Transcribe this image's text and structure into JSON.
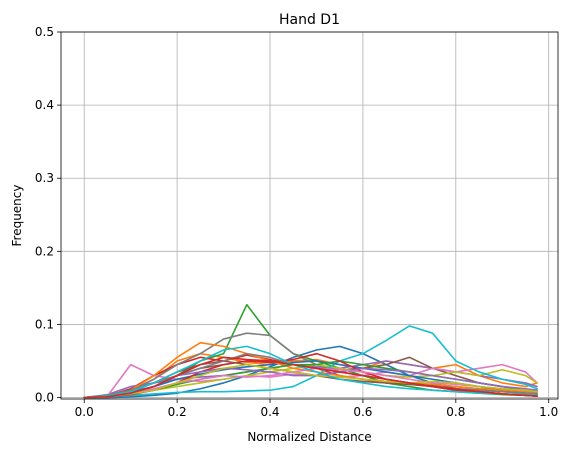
{
  "chart_data": {
    "type": "line",
    "title": "Hand D1",
    "xlabel": "Normalized Distance",
    "ylabel": "Frequency",
    "xlim": [
      -0.05,
      1.02
    ],
    "ylim": [
      -0.002,
      0.5
    ],
    "xticks": [
      0.0,
      0.2,
      0.4,
      0.6,
      0.8,
      1.0
    ],
    "xtick_labels": [
      "0.0",
      "0.2",
      "0.4",
      "0.6",
      "0.8",
      "1.0"
    ],
    "yticks": [
      0.0,
      0.1,
      0.2,
      0.3,
      0.4,
      0.5
    ],
    "ytick_labels": [
      "0.0",
      "0.1",
      "0.2",
      "0.3",
      "0.4",
      "0.5"
    ],
    "grid": true,
    "x": [
      0.0,
      0.05,
      0.1,
      0.15,
      0.2,
      0.25,
      0.3,
      0.35,
      0.4,
      0.45,
      0.5,
      0.55,
      0.6,
      0.65,
      0.7,
      0.75,
      0.8,
      0.85,
      0.9,
      0.95,
      0.975
    ],
    "series": [
      {
        "color": "#1f77b4",
        "values": [
          0.0,
          0.0,
          0.001,
          0.003,
          0.006,
          0.012,
          0.02,
          0.03,
          0.042,
          0.055,
          0.065,
          0.07,
          0.06,
          0.045,
          0.03,
          0.02,
          0.012,
          0.008,
          0.005,
          0.003,
          0.002
        ]
      },
      {
        "color": "#ff7f0e",
        "values": [
          0.0,
          0.002,
          0.01,
          0.025,
          0.05,
          0.06,
          0.055,
          0.048,
          0.045,
          0.05,
          0.052,
          0.045,
          0.04,
          0.05,
          0.045,
          0.04,
          0.045,
          0.03,
          0.02,
          0.015,
          0.02
        ]
      },
      {
        "color": "#2ca02c",
        "values": [
          0.0,
          0.001,
          0.005,
          0.015,
          0.03,
          0.05,
          0.06,
          0.127,
          0.085,
          0.06,
          0.05,
          0.04,
          0.03,
          0.02,
          0.015,
          0.01,
          0.008,
          0.006,
          0.004,
          0.003,
          0.002
        ]
      },
      {
        "color": "#d62728",
        "values": [
          0.0,
          0.002,
          0.012,
          0.03,
          0.045,
          0.055,
          0.05,
          0.058,
          0.052,
          0.045,
          0.04,
          0.03,
          0.025,
          0.02,
          0.018,
          0.015,
          0.01,
          0.008,
          0.005,
          0.003,
          0.002
        ]
      },
      {
        "color": "#9467bd",
        "values": [
          0.0,
          0.004,
          0.015,
          0.02,
          0.025,
          0.028,
          0.03,
          0.035,
          0.04,
          0.045,
          0.042,
          0.04,
          0.045,
          0.05,
          0.045,
          0.04,
          0.035,
          0.03,
          0.025,
          0.02,
          0.015
        ]
      },
      {
        "color": "#8c564b",
        "values": [
          0.0,
          0.003,
          0.01,
          0.02,
          0.03,
          0.04,
          0.045,
          0.05,
          0.048,
          0.045,
          0.04,
          0.038,
          0.04,
          0.045,
          0.055,
          0.04,
          0.03,
          0.02,
          0.015,
          0.01,
          0.008
        ]
      },
      {
        "color": "#e377c2",
        "values": [
          0.0,
          0.002,
          0.045,
          0.03,
          0.025,
          0.022,
          0.025,
          0.03,
          0.028,
          0.032,
          0.03,
          0.028,
          0.03,
          0.035,
          0.03,
          0.04,
          0.035,
          0.04,
          0.045,
          0.035,
          0.02
        ]
      },
      {
        "color": "#7f7f7f",
        "values": [
          0.0,
          0.002,
          0.01,
          0.025,
          0.045,
          0.06,
          0.08,
          0.088,
          0.085,
          0.06,
          0.045,
          0.035,
          0.03,
          0.025,
          0.02,
          0.018,
          0.015,
          0.012,
          0.01,
          0.008,
          0.006
        ]
      },
      {
        "color": "#bcbd22",
        "values": [
          0.0,
          0.002,
          0.006,
          0.01,
          0.015,
          0.02,
          0.025,
          0.03,
          0.035,
          0.04,
          0.045,
          0.04,
          0.035,
          0.03,
          0.028,
          0.03,
          0.035,
          0.03,
          0.038,
          0.03,
          0.02
        ]
      },
      {
        "color": "#17becf",
        "values": [
          0.0,
          0.001,
          0.003,
          0.005,
          0.007,
          0.008,
          0.008,
          0.009,
          0.01,
          0.015,
          0.03,
          0.05,
          0.06,
          0.078,
          0.098,
          0.088,
          0.05,
          0.035,
          0.025,
          0.018,
          0.012
        ]
      },
      {
        "color": "#1f77b4",
        "values": [
          0.0,
          0.003,
          0.008,
          0.015,
          0.025,
          0.032,
          0.038,
          0.042,
          0.045,
          0.048,
          0.05,
          0.045,
          0.04,
          0.035,
          0.03,
          0.025,
          0.02,
          0.015,
          0.01,
          0.007,
          0.005
        ]
      },
      {
        "color": "#ff7f0e",
        "values": [
          0.0,
          0.001,
          0.01,
          0.03,
          0.055,
          0.075,
          0.07,
          0.06,
          0.05,
          0.04,
          0.035,
          0.03,
          0.025,
          0.022,
          0.02,
          0.018,
          0.015,
          0.012,
          0.01,
          0.008,
          0.005
        ]
      },
      {
        "color": "#2ca02c",
        "values": [
          0.0,
          0.002,
          0.005,
          0.01,
          0.018,
          0.025,
          0.03,
          0.035,
          0.04,
          0.045,
          0.045,
          0.05,
          0.045,
          0.04,
          0.035,
          0.03,
          0.025,
          0.02,
          0.015,
          0.01,
          0.008
        ]
      },
      {
        "color": "#d62728",
        "values": [
          0.0,
          0.001,
          0.004,
          0.01,
          0.02,
          0.035,
          0.045,
          0.05,
          0.048,
          0.052,
          0.06,
          0.05,
          0.035,
          0.025,
          0.02,
          0.015,
          0.01,
          0.008,
          0.005,
          0.003,
          0.002
        ]
      },
      {
        "color": "#9467bd",
        "values": [
          0.0,
          0.002,
          0.01,
          0.02,
          0.03,
          0.035,
          0.04,
          0.038,
          0.035,
          0.03,
          0.03,
          0.035,
          0.04,
          0.038,
          0.035,
          0.03,
          0.025,
          0.02,
          0.015,
          0.012,
          0.01
        ]
      },
      {
        "color": "#8c564b",
        "values": [
          0.0,
          0.001,
          0.008,
          0.02,
          0.035,
          0.045,
          0.05,
          0.045,
          0.04,
          0.035,
          0.03,
          0.025,
          0.022,
          0.02,
          0.018,
          0.016,
          0.012,
          0.01,
          0.008,
          0.006,
          0.004
        ]
      },
      {
        "color": "#e377c2",
        "values": [
          0.0,
          0.002,
          0.006,
          0.012,
          0.02,
          0.025,
          0.03,
          0.028,
          0.03,
          0.035,
          0.04,
          0.038,
          0.035,
          0.03,
          0.025,
          0.02,
          0.018,
          0.015,
          0.012,
          0.01,
          0.008
        ]
      },
      {
        "color": "#7f7f7f",
        "values": [
          0.0,
          0.003,
          0.01,
          0.02,
          0.03,
          0.04,
          0.05,
          0.06,
          0.055,
          0.045,
          0.04,
          0.035,
          0.03,
          0.025,
          0.02,
          0.015,
          0.012,
          0.01,
          0.008,
          0.006,
          0.005
        ]
      },
      {
        "color": "#bcbd22",
        "values": [
          0.0,
          0.001,
          0.005,
          0.01,
          0.02,
          0.03,
          0.04,
          0.045,
          0.04,
          0.035,
          0.03,
          0.028,
          0.025,
          0.022,
          0.02,
          0.022,
          0.02,
          0.015,
          0.012,
          0.01,
          0.008
        ]
      },
      {
        "color": "#17becf",
        "values": [
          0.0,
          0.002,
          0.008,
          0.02,
          0.035,
          0.05,
          0.065,
          0.07,
          0.06,
          0.045,
          0.035,
          0.025,
          0.02,
          0.015,
          0.012,
          0.01,
          0.008,
          0.006,
          0.005,
          0.004,
          0.003
        ]
      },
      {
        "color": "#d62728",
        "values": [
          0.0,
          0.001,
          0.006,
          0.015,
          0.03,
          0.045,
          0.055,
          0.052,
          0.05,
          0.045,
          0.04,
          0.035,
          0.03,
          0.025,
          0.02,
          0.015,
          0.012,
          0.008,
          0.005,
          0.003,
          0.002
        ]
      }
    ]
  }
}
